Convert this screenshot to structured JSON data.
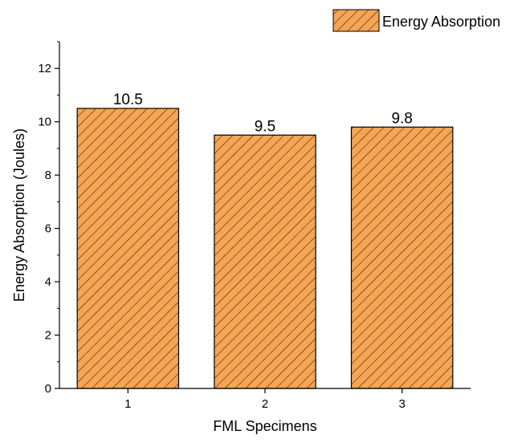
{
  "chart_data": {
    "type": "bar",
    "categories": [
      "1",
      "2",
      "3"
    ],
    "series": [
      {
        "name": "Energy Absorption",
        "values": [
          10.5,
          9.5,
          9.8
        ]
      }
    ],
    "data_labels": [
      "10.5",
      "9.5",
      "9.8"
    ],
    "xlabel": "FML Specimens",
    "ylabel": "Energy Absorption (Joules)",
    "ylim": [
      0,
      13
    ],
    "yticks": [
      0,
      2,
      4,
      6,
      8,
      10,
      12
    ],
    "grid": false,
    "legend": {
      "position": "top-right",
      "label": "Energy Absorption"
    },
    "colors": {
      "bar_fill": "#F5A553",
      "hatch": "#000000",
      "axis": "#000000"
    }
  }
}
